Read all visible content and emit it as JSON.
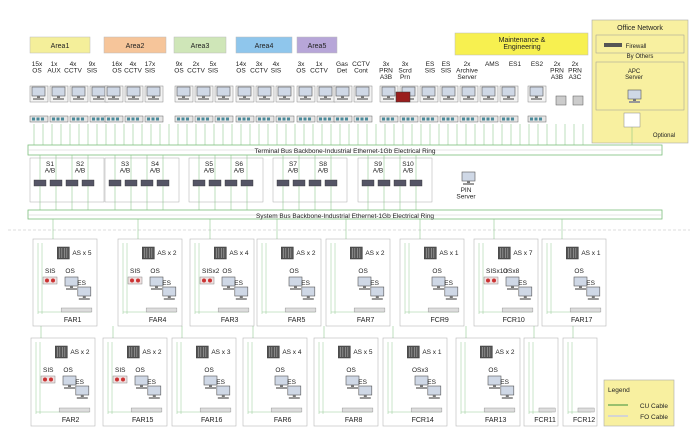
{
  "areas": [
    {
      "label": "Area1",
      "color": "#f4ef9a"
    },
    {
      "label": "Area2",
      "color": "#f6c59a"
    },
    {
      "label": "Area3",
      "color": "#cfe6b8"
    },
    {
      "label": "Area4",
      "color": "#8fc6ec"
    },
    {
      "label": "Area5",
      "color": "#b7a6d8"
    }
  ],
  "maintenance": {
    "label": "Maintenance &\nEngineering",
    "color": "#f7f050"
  },
  "office": {
    "title": "Office Network",
    "firewall": "Firewall",
    "by_others": "By Others",
    "apc": "APC\nServer",
    "optional": "Optional",
    "color": "#f8f0a0"
  },
  "stations": [
    {
      "label": "15x\nOS"
    },
    {
      "label": "1x\nAUX"
    },
    {
      "label": "4x\nCCTV"
    },
    {
      "label": "9x\nSIS"
    },
    {
      "label": "16x\nOS"
    },
    {
      "label": "4x\nCCTV"
    },
    {
      "label": "17x\nSIS"
    },
    {
      "label": "9x\nOS"
    },
    {
      "label": "2x\nCCTV"
    },
    {
      "label": "5x\nSIS"
    },
    {
      "label": "14x\nOS"
    },
    {
      "label": "3x\nCCTV"
    },
    {
      "label": "4x\nSIS"
    },
    {
      "label": "3x\nOS"
    },
    {
      "label": "1x\nCCTV"
    },
    {
      "label": "Gas\nDet"
    },
    {
      "label": "CCTV\nCont"
    },
    {
      "label": "3x\nPRN\nA3B"
    },
    {
      "label": "3x\nScrd\nPrn"
    },
    {
      "label": "ES\nSIS"
    },
    {
      "label": "ES\nSIS"
    },
    {
      "label": "2x\nArchive\nServer"
    },
    {
      "label": "AMS"
    },
    {
      "label": "ES1"
    },
    {
      "label": "ES2"
    },
    {
      "label": "2x\nPRN\nA3B"
    },
    {
      "label": "2x\nPRN\nA3C"
    }
  ],
  "terminal_bus": "Terminal Bus Backbone-Industrial  Ethernet-1Gb  Electrical Ring",
  "system_bus": "System Bus Backbone-Industrial  Ethernet-1Gb  Electrical Ring",
  "switches": [
    "S1\nA/B",
    "S2\nA/B",
    "S3\nA/B",
    "S4\nA/B",
    "S5\nA/B",
    "S6\nA/B",
    "S7\nA/B",
    "S8\nA/B",
    "S9\nA/B",
    "S10\nA/B"
  ],
  "pin_server": "PIN\nServer",
  "cabinets_row1": [
    {
      "name": "FAR1",
      "as": "AS x 5",
      "sis": "SIS",
      "os": "OS",
      "es": "ES"
    },
    {
      "name": "FAR4",
      "as": "AS x 2",
      "sis": "SIS",
      "os": "OS",
      "es": "ES"
    },
    {
      "name": "FAR3",
      "as": "AS x 4",
      "sis": "SISx2",
      "os": "OS",
      "es": "ES"
    },
    {
      "name": "FAR5",
      "as": "AS x 2",
      "sis": "",
      "os": "OS",
      "es": "ES"
    },
    {
      "name": "FAR7",
      "as": "AS x 2",
      "sis": "",
      "os": "OS",
      "es": "ES"
    },
    {
      "name": "FCR9",
      "as": "AS x 1",
      "sis": "",
      "os": "OS",
      "es": "ES"
    },
    {
      "name": "FCR10",
      "as": "AS x 7",
      "sis": "SISx10",
      "os": "OSx8",
      "es": "ES"
    },
    {
      "name": "FAR17",
      "as": "AS x 1",
      "sis": "",
      "os": "OS",
      "es": "ES"
    }
  ],
  "cabinets_row2": [
    {
      "name": "FAR2",
      "as": "AS x 2",
      "sis": "SIS",
      "os": "OS",
      "es": "ES"
    },
    {
      "name": "FAR15",
      "as": "AS x 2",
      "sis": "SIS",
      "os": "OS",
      "es": "ES"
    },
    {
      "name": "FAR16",
      "as": "AS x 3",
      "sis": "",
      "os": "OS",
      "es": "ES"
    },
    {
      "name": "FAR6",
      "as": "AS x 4",
      "sis": "",
      "os": "OS",
      "es": "ES"
    },
    {
      "name": "FAR8",
      "as": "AS x 5",
      "sis": "",
      "os": "OS",
      "es": "ES"
    },
    {
      "name": "FCR14",
      "as": "AS x 1",
      "sis": "",
      "os": "OSx3",
      "es": "ES"
    },
    {
      "name": "FAR13",
      "as": "AS x 2",
      "sis": "",
      "os": "OS",
      "es": "ES"
    },
    {
      "name": "FCR11",
      "as": "",
      "sis": "",
      "os": "",
      "es": ""
    },
    {
      "name": "FCR12",
      "as": "",
      "sis": "",
      "os": "",
      "es": ""
    }
  ],
  "legend": {
    "title": "Legend",
    "cu": "CU Cable",
    "fo": "FO Cable",
    "cu_color": "#3a8f3a",
    "fo_color": "#d4d4d4"
  }
}
